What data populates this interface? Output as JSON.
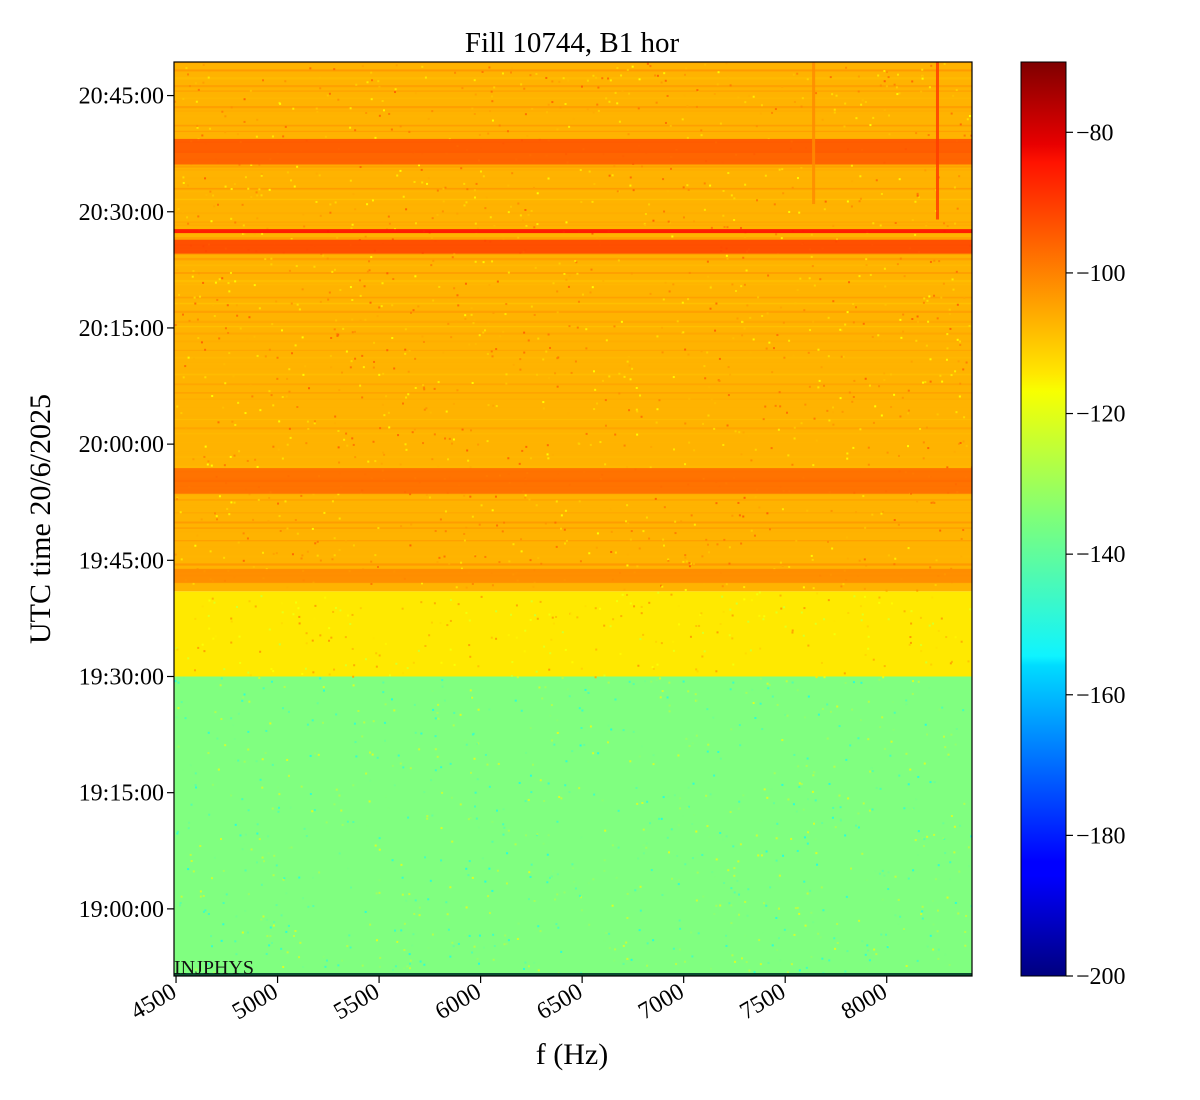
{
  "chart_data": {
    "type": "heatmap",
    "title": "Fill 10744, B1 hor",
    "xlabel": "f (Hz)",
    "ylabel": "UTC time 20/6/2025",
    "xlim": [
      4490,
      8420
    ],
    "ylim": [
      "18:51:20",
      "20:49:20"
    ],
    "x_ticks": [
      "4500",
      "5000",
      "5500",
      "6000",
      "6500",
      "7000",
      "7500",
      "8000"
    ],
    "y_ticks": [
      "19:00:00",
      "19:15:00",
      "19:30:00",
      "19:45:00",
      "20:00:00",
      "20:15:00",
      "20:30:00",
      "20:45:00"
    ],
    "colorbar": {
      "colormap": "jet",
      "range": [
        -200,
        -70
      ],
      "ticks": [
        "−200",
        "−180",
        "−160",
        "−140",
        "−120",
        "−100",
        "−80"
      ]
    },
    "annotation": "INJPHYS",
    "regions": [
      {
        "from": "18:51:20",
        "to": "19:30:00",
        "level_db": -135
      },
      {
        "from": "19:30:00",
        "to": "19:41:00",
        "level_db": -116
      },
      {
        "from": "19:41:00",
        "to": "20:49:20",
        "level_db": -109
      }
    ],
    "strong_bands": [
      {
        "time": "20:27:30",
        "level_db": -88
      },
      {
        "time": "20:25:30",
        "level_db": -95
      },
      {
        "time": "20:38:30",
        "level_db": -97
      },
      {
        "time": "20:37:00",
        "level_db": -98
      },
      {
        "time": "19:56:00",
        "level_db": -100
      },
      {
        "time": "19:54:30",
        "level_db": -100
      },
      {
        "time": "19:43:00",
        "level_db": -104
      }
    ],
    "vertical_lines": [
      {
        "f": 8250,
        "from": "20:29:00",
        "to": "20:49:20",
        "level_db": -94
      },
      {
        "f": 7640,
        "from": "20:31:00",
        "to": "20:49:20",
        "level_db": -104
      }
    ]
  }
}
